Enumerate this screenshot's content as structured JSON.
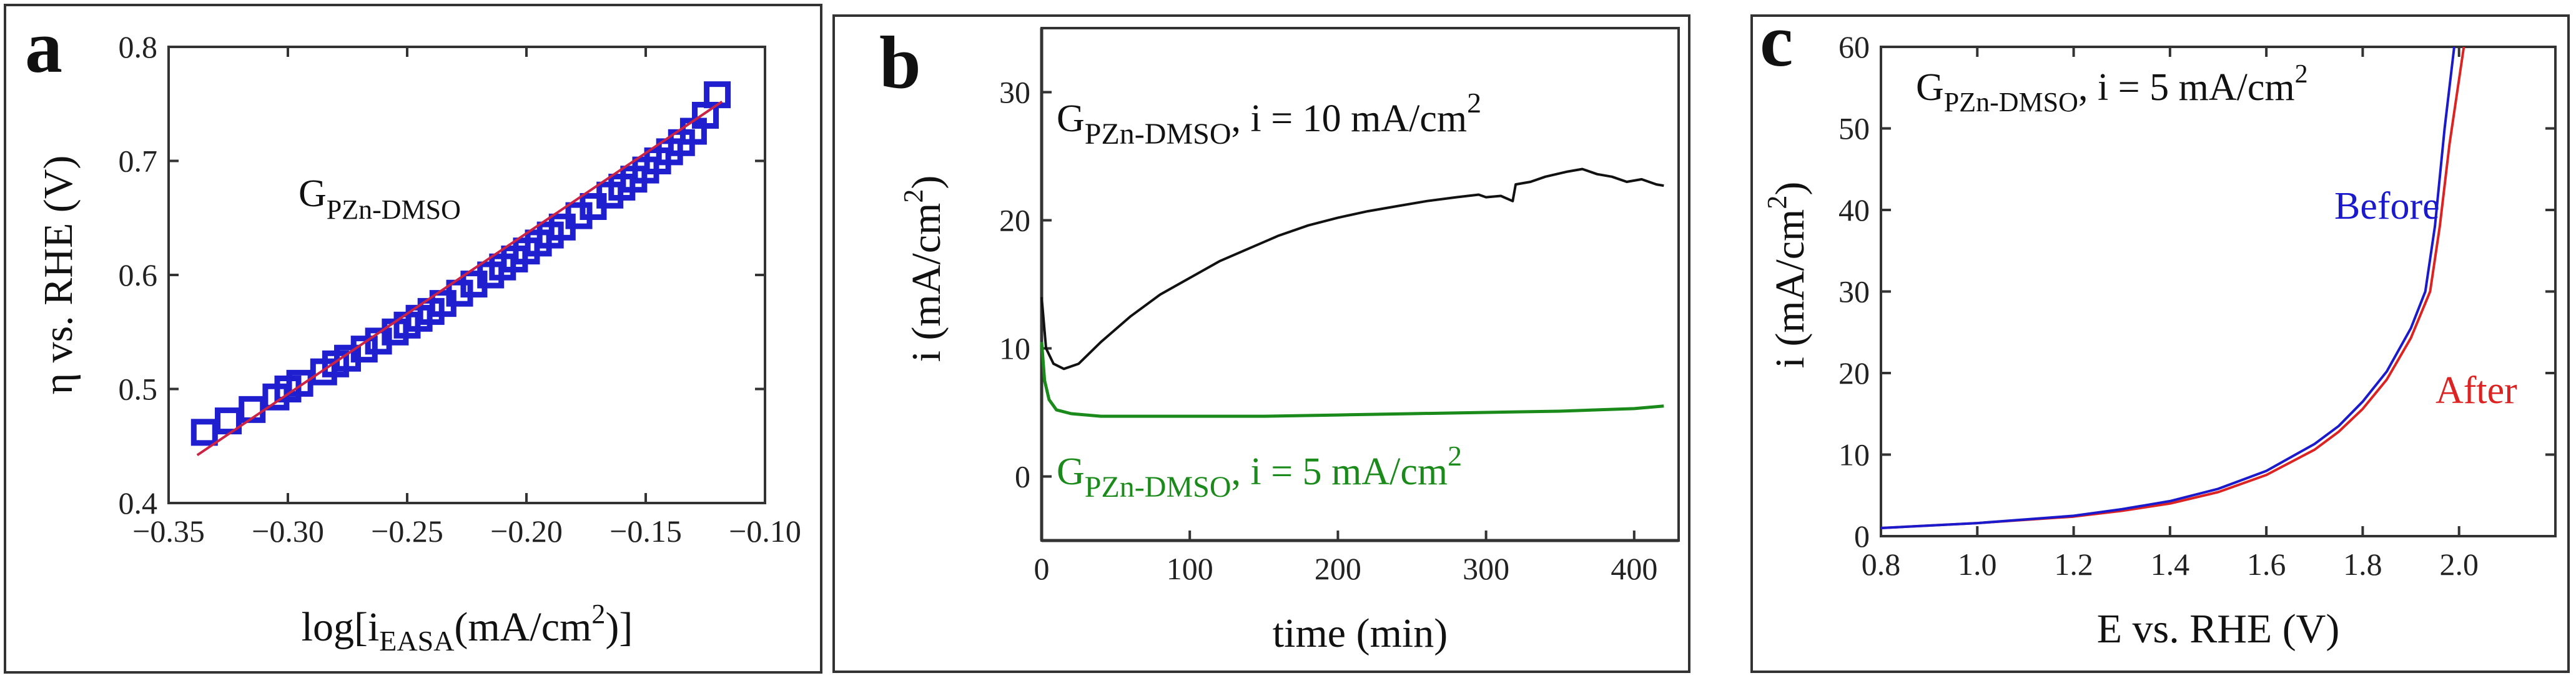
{
  "figure": {
    "panel_labels": [
      "a",
      "b",
      "c"
    ]
  },
  "chart_data": [
    {
      "panel": "a",
      "type": "scatter",
      "xlabel_prefix": "log[i",
      "xlabel_sub": "EASA",
      "xlabel_mid": "(mA/cm",
      "xlabel_sup": "2",
      "xlabel_suffix": ")]",
      "ylabel": "η vs. RHE (V)",
      "xlim": [
        -0.35,
        -0.1
      ],
      "ylim": [
        0.4,
        0.8
      ],
      "xticks": [
        "−0.35",
        "−0.30",
        "−0.25",
        "−0.20",
        "−0.15",
        "−0.10"
      ],
      "xtick_values": [
        -0.35,
        -0.3,
        -0.25,
        -0.2,
        -0.15,
        -0.1
      ],
      "yticks": [
        "0.4",
        "0.5",
        "0.6",
        "0.7",
        "0.8"
      ],
      "ytick_values": [
        0.4,
        0.5,
        0.6,
        0.7,
        0.8
      ],
      "annotation": {
        "main": "G",
        "sub": "PZn-DMSO",
        "color": "#111111"
      },
      "series": [
        {
          "name": "G PZn-DMSO data",
          "marker": "open-square",
          "color": "#1f1fcf",
          "x": [
            -0.335,
            -0.325,
            -0.315,
            -0.305,
            -0.3,
            -0.295,
            -0.285,
            -0.28,
            -0.275,
            -0.268,
            -0.262,
            -0.255,
            -0.25,
            -0.245,
            -0.24,
            -0.235,
            -0.228,
            -0.222,
            -0.215,
            -0.21,
            -0.205,
            -0.2,
            -0.195,
            -0.19,
            -0.185,
            -0.178,
            -0.172,
            -0.165,
            -0.16,
            -0.155,
            -0.15,
            -0.145,
            -0.14,
            -0.135,
            -0.13,
            -0.125,
            -0.12
          ],
          "y": [
            0.462,
            0.472,
            0.482,
            0.493,
            0.5,
            0.505,
            0.515,
            0.522,
            0.527,
            0.535,
            0.542,
            0.55,
            0.556,
            0.562,
            0.568,
            0.575,
            0.584,
            0.592,
            0.6,
            0.607,
            0.614,
            0.621,
            0.628,
            0.635,
            0.642,
            0.652,
            0.66,
            0.67,
            0.677,
            0.684,
            0.692,
            0.7,
            0.708,
            0.716,
            0.726,
            0.74,
            0.758
          ]
        },
        {
          "name": "linear fit",
          "style": "line",
          "color": "#cc2244",
          "x": [
            -0.338,
            -0.118
          ],
          "y": [
            0.442,
            0.752
          ]
        }
      ]
    },
    {
      "panel": "b",
      "type": "line",
      "xlabel": "time (min)",
      "ylabel_prefix": "i (mA/cm",
      "ylabel_sup": "2",
      "ylabel_suffix": ")",
      "xlim": [
        0,
        430
      ],
      "ylim": [
        -5,
        35
      ],
      "xticks": [
        "0",
        "100",
        "200",
        "300",
        "400"
      ],
      "xtick_values": [
        0,
        100,
        200,
        300,
        400
      ],
      "yticks": [
        "0",
        "10",
        "20",
        "30"
      ],
      "ytick_values": [
        0,
        10,
        20,
        30
      ],
      "annotations": [
        {
          "main": "G",
          "sub": "PZn-DMSO",
          "rest": ", i = 10 mA/cm",
          "sup": "2",
          "color": "#111111"
        },
        {
          "main": "G",
          "sub": "PZn-DMSO",
          "rest": ", i = 5 mA/cm",
          "sup": "2",
          "color": "#1a8a1a"
        }
      ],
      "series": [
        {
          "name": "i = 10 mA/cm2",
          "color": "#111111",
          "x": [
            0,
            3,
            8,
            15,
            25,
            40,
            60,
            80,
            100,
            120,
            140,
            160,
            180,
            200,
            220,
            240,
            260,
            280,
            295,
            300,
            310,
            318,
            320,
            330,
            340,
            355,
            365,
            375,
            385,
            395,
            405,
            415,
            420
          ],
          "y": [
            14,
            10,
            8.8,
            8.4,
            8.8,
            10.5,
            12.5,
            14.2,
            15.5,
            16.8,
            17.8,
            18.8,
            19.6,
            20.2,
            20.7,
            21.1,
            21.5,
            21.8,
            22.0,
            21.8,
            21.9,
            21.5,
            22.8,
            23.0,
            23.4,
            23.8,
            24.0,
            23.6,
            23.4,
            23.0,
            23.2,
            22.8,
            22.7
          ]
        },
        {
          "name": "i = 5 mA/cm2",
          "color": "#1a8a1a",
          "x": [
            0,
            2,
            5,
            10,
            20,
            40,
            60,
            100,
            150,
            200,
            250,
            300,
            350,
            400,
            420
          ],
          "y": [
            10.5,
            7.5,
            6.0,
            5.2,
            4.9,
            4.7,
            4.7,
            4.7,
            4.7,
            4.8,
            4.9,
            5.0,
            5.1,
            5.3,
            5.5
          ]
        }
      ]
    },
    {
      "panel": "c",
      "type": "line",
      "xlabel": "E vs. RHE (V)",
      "ylabel_prefix": "i (mA/cm",
      "ylabel_sup": "2",
      "ylabel_suffix": ")",
      "xlim": [
        0.8,
        2.2
      ],
      "ylim": [
        0,
        60
      ],
      "xticks": [
        "0.8",
        "1.0",
        "1.2",
        "1.4",
        "1.6",
        "1.8",
        "2.0"
      ],
      "xtick_values": [
        0.8,
        1.0,
        1.2,
        1.4,
        1.6,
        1.8,
        2.0
      ],
      "yticks": [
        "0",
        "10",
        "20",
        "30",
        "40",
        "50",
        "60"
      ],
      "ytick_values": [
        0,
        10,
        20,
        30,
        40,
        50,
        60
      ],
      "annotation": {
        "main": "G",
        "sub": "PZn-DMSO",
        "rest": ", i = 5 mA/cm",
        "sup": "2",
        "color": "#111111"
      },
      "legend_labels": [
        {
          "text": "Before",
          "color": "#1a1acc"
        },
        {
          "text": "After",
          "color": "#dd2222"
        }
      ],
      "series": [
        {
          "name": "Before",
          "color": "#1a1acc",
          "x": [
            0.8,
            1.0,
            1.2,
            1.3,
            1.4,
            1.5,
            1.6,
            1.7,
            1.75,
            1.8,
            1.85,
            1.9,
            1.93,
            1.95,
            1.97,
            1.99
          ],
          "y": [
            1.0,
            1.6,
            2.5,
            3.3,
            4.3,
            5.8,
            8.0,
            11.3,
            13.5,
            16.5,
            20.2,
            25.5,
            30.0,
            38.0,
            50.0,
            60.0
          ]
        },
        {
          "name": "After",
          "color": "#dd2222",
          "x": [
            0.8,
            1.0,
            1.2,
            1.3,
            1.4,
            1.5,
            1.6,
            1.7,
            1.75,
            1.8,
            1.85,
            1.9,
            1.94,
            1.96,
            1.98,
            2.01
          ],
          "y": [
            1.0,
            1.6,
            2.4,
            3.1,
            4.0,
            5.4,
            7.5,
            10.6,
            12.8,
            15.6,
            19.2,
            24.3,
            30.0,
            38.0,
            48.0,
            60.0
          ]
        }
      ]
    }
  ]
}
